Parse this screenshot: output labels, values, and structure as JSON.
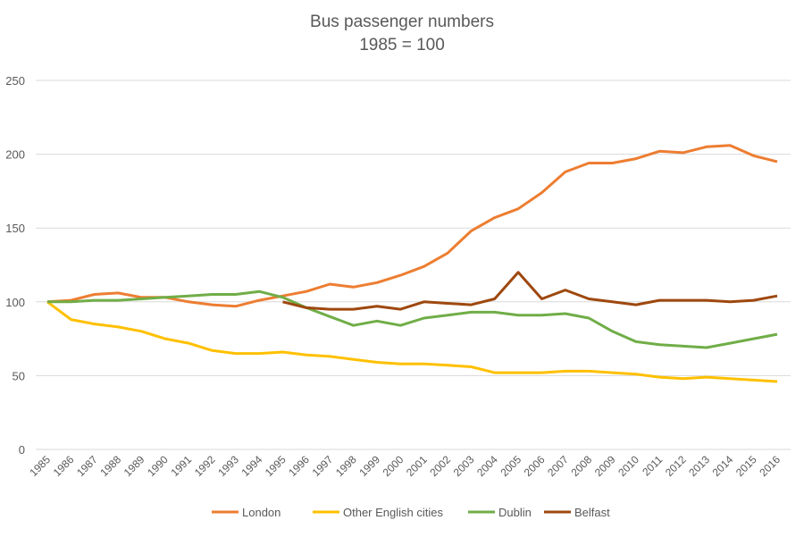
{
  "chart_data": {
    "type": "line",
    "title": "Bus passenger numbers",
    "subtitle": "1985 = 100",
    "xlabel": "",
    "ylabel": "",
    "ylim": [
      0,
      250
    ],
    "yticks": [
      0,
      50,
      100,
      150,
      200,
      250
    ],
    "grid": true,
    "legend": "bottom",
    "x": [
      "1985",
      "1986",
      "1987",
      "1988",
      "1989",
      "1990",
      "1991",
      "1992",
      "1993",
      "1994",
      "1995",
      "1996",
      "1997",
      "1998",
      "1999",
      "2000",
      "2001",
      "2002",
      "2003",
      "2004",
      "2005",
      "2006",
      "2007",
      "2008",
      "2009",
      "2010",
      "2011",
      "2012",
      "2013",
      "2014",
      "2015",
      "2016"
    ],
    "series": [
      {
        "name": "London",
        "color": "#ED7D31",
        "values": [
          100,
          101,
          105,
          106,
          103,
          103,
          100,
          98,
          97,
          101,
          104,
          107,
          112,
          110,
          113,
          118,
          124,
          133,
          148,
          157,
          163,
          174,
          188,
          194,
          194,
          197,
          202,
          201,
          205,
          206,
          199,
          195
        ]
      },
      {
        "name": "Other English cities",
        "color": "#FFC000",
        "values": [
          100,
          88,
          85,
          83,
          80,
          75,
          72,
          67,
          65,
          65,
          66,
          64,
          63,
          61,
          59,
          58,
          58,
          57,
          56,
          52,
          52,
          52,
          53,
          53,
          52,
          51,
          49,
          48,
          49,
          48,
          47,
          46
        ]
      },
      {
        "name": "Dublin",
        "color": "#70AD47",
        "values": [
          100,
          100,
          101,
          101,
          102,
          103,
          104,
          105,
          105,
          107,
          103,
          96,
          90,
          84,
          87,
          84,
          89,
          91,
          93,
          93,
          91,
          91,
          92,
          89,
          80,
          73,
          71,
          70,
          69,
          72,
          75,
          78
        ]
      },
      {
        "name": "Belfast",
        "color": "#9E480E",
        "values": [
          null,
          null,
          null,
          null,
          null,
          null,
          null,
          null,
          null,
          null,
          100,
          96,
          95,
          95,
          97,
          95,
          100,
          99,
          98,
          102,
          120,
          102,
          108,
          102,
          100,
          98,
          101,
          101,
          101,
          100,
          101,
          104
        ]
      }
    ]
  }
}
